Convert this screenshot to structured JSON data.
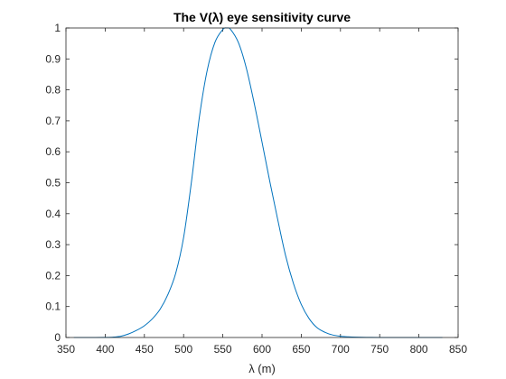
{
  "chart_data": {
    "type": "line",
    "title": "The V(λ) eye sensitivity curve",
    "xlabel": "λ (m)",
    "ylabel": "",
    "xlim": [
      350,
      850
    ],
    "ylim": [
      0,
      1
    ],
    "xticks": [
      "350",
      "400",
      "450",
      "500",
      "550",
      "600",
      "650",
      "700",
      "750",
      "800",
      "850"
    ],
    "yticks": [
      "0",
      "0.1",
      "0.2",
      "0.3",
      "0.4",
      "0.5",
      "0.6",
      "0.7",
      "0.8",
      "0.9",
      "1"
    ],
    "grid": false,
    "legend": "none",
    "series": [
      {
        "color": "#0072BD",
        "x": [
          360,
          380,
          400,
          410,
          420,
          430,
          440,
          450,
          460,
          470,
          480,
          490,
          500,
          510,
          520,
          530,
          540,
          550,
          555,
          560,
          570,
          580,
          590,
          600,
          610,
          620,
          630,
          640,
          650,
          660,
          670,
          680,
          690,
          700,
          710,
          720,
          740,
          760,
          780,
          800,
          830
        ],
        "values": [
          0,
          0,
          0.0004,
          0.0012,
          0.004,
          0.0116,
          0.023,
          0.038,
          0.06,
          0.091,
          0.139,
          0.208,
          0.323,
          0.503,
          0.71,
          0.862,
          0.954,
          0.995,
          1.0,
          0.995,
          0.952,
          0.87,
          0.757,
          0.631,
          0.503,
          0.381,
          0.265,
          0.175,
          0.107,
          0.061,
          0.032,
          0.017,
          0.0082,
          0.0041,
          0.0021,
          0.001,
          0.0003,
          0.0001,
          0,
          0,
          0
        ]
      }
    ]
  }
}
